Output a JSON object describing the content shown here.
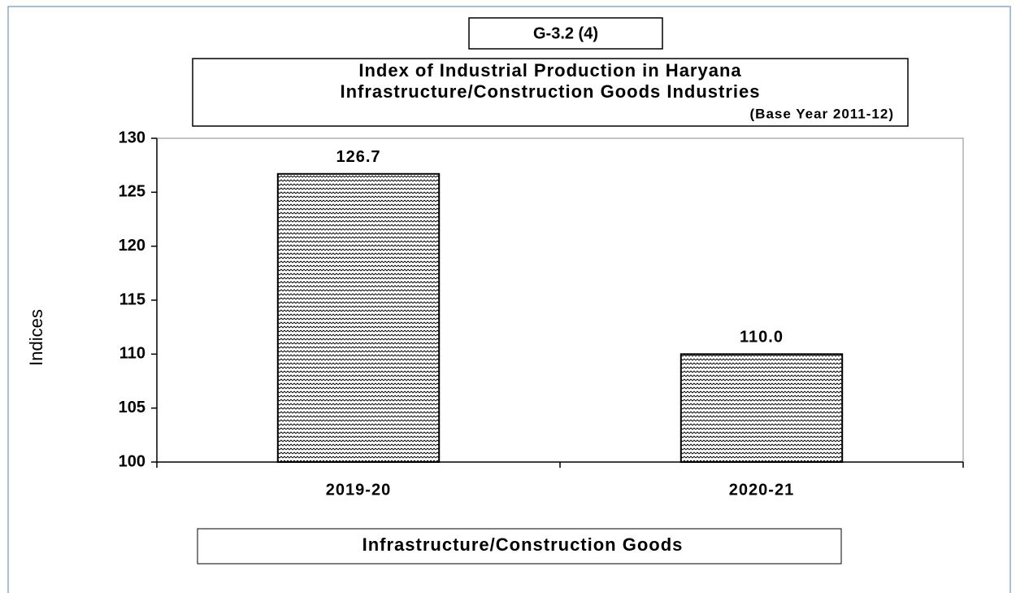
{
  "chart_data": {
    "type": "bar",
    "label": "G-3.2 (4)",
    "title": "Index of Industrial Production in Haryana",
    "subtitle": "Infrastructure/Construction Goods Industries",
    "note": "(Base Year 2011-12)",
    "y_label": "Indices",
    "categories": [
      "2019-20",
      "2020-21"
    ],
    "series": [
      {
        "name": "Infrastructure/Construction Goods",
        "color": "#000000",
        "values": [
          126.7,
          110
        ],
        "value_labels": [
          "126.7",
          "110.0"
        ]
      }
    ],
    "ylim": [
      100,
      130
    ],
    "yticks": [
      100,
      105,
      110,
      115,
      120,
      125,
      130
    ]
  }
}
